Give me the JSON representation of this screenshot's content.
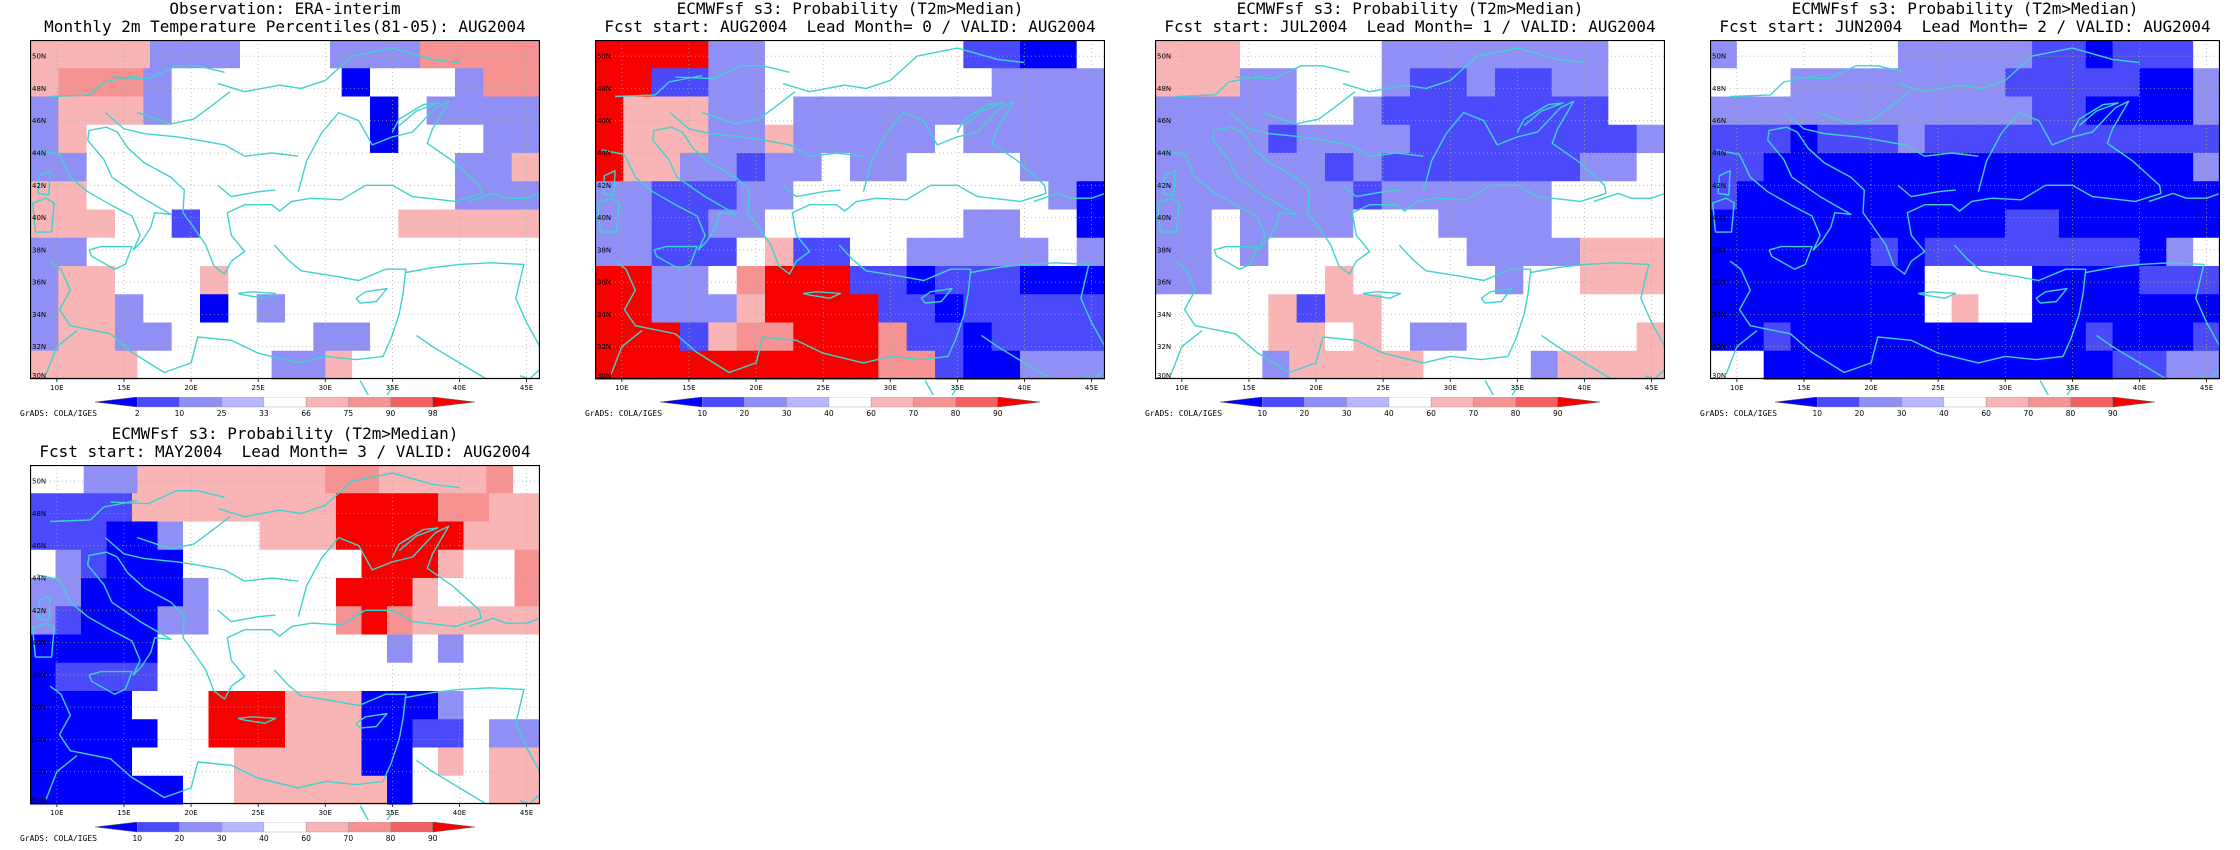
{
  "credit": "GrADS: COLA/IGES",
  "axes": {
    "lon_ticks": [
      "10E",
      "15E",
      "20E",
      "25E",
      "30E",
      "35E",
      "40E",
      "45E"
    ],
    "lat_ticks": [
      "30N",
      "32N",
      "34N",
      "36N",
      "38N",
      "40N",
      "42N",
      "44N",
      "46N",
      "48N",
      "50N"
    ],
    "lon_range": [
      8,
      46
    ],
    "lat_range": [
      30,
      51
    ]
  },
  "colors": {
    "dblue": "#0000ff",
    "mblue": "#4a4afb",
    "lblue": "#8f8ff6",
    "vlblue": "#b7b7ff",
    "white": "#ffffff",
    "vlred": "#f9b5b5",
    "lred": "#f69292",
    "mred": "#f26161",
    "dred": "#f70000",
    "coast": "#40d2cf",
    "grid": "#aaaaaa"
  },
  "panels": [
    {
      "name": "observation",
      "title1": "Observation: ERA-interim",
      "title2": "Monthly 2m Temperature Percentiles(81-05): AUG2004",
      "colorbar": {
        "labels": [
          "2",
          "10",
          "25",
          "33",
          "66",
          "75",
          "90",
          "98"
        ],
        "colors": [
          "dblue",
          "mblue",
          "lblue",
          "vlblue",
          "white",
          "vlred",
          "lred",
          "mred",
          "dred"
        ]
      },
      "grid_rows_north_to_south": [
        "llllvvvwwwvvvrrrr",
        "lrrrvwwwwwwbwwwvrr",
        "vlllvwwwwwwwbwvvvv",
        "vlwwwwwwwwwwbwwwvv",
        "vvwwwwwwwwwwwwwvvl",
        "llwwwwwwwwwwwwwvvv",
        "lllwwmwwwwwwwlllll",
        "vvwwwwwwwwwwwwwwww",
        "vllwwwlwwwwwwwwwww",
        "vllvwwbwvwwwwwwwww",
        "vllvvwwwwwvvwwwwww",
        "llllwwwwwvvlwwwwwww"
      ]
    },
    {
      "name": "lead0",
      "title1": "ECMWFsf s3: Probability (T2m>Median)",
      "title2": "Fcst start: AUG2004  Lead Month= 0 / VALID: AUG2004",
      "colorbar": {
        "labels": [
          "10",
          "20",
          "30",
          "40",
          "60",
          "70",
          "80",
          "90"
        ],
        "colors": [
          "dblue",
          "mblue",
          "lblue",
          "vlblue",
          "white",
          "vlred",
          "lred",
          "mred",
          "dred"
        ]
      },
      "grid_rows_north_to_south": [
        "ddddvvwwwwwwwmmbbw",
        "ddmmvvwwwwwwwwvvvv",
        "dlllvvwvvvvvvvvvvv",
        "dlllvvlvvvvvwvvvvv",
        "dllvvmvvwvvwwwwvvv",
        "vvmmmvvwwwwwwwwwvb",
        "vvmmvvwwwwwwwvvwwb",
        "vvmmmwlmmwwvvvvvwv",
        "ddvvwrdddmmbmmmbbb",
        "ddvvvlddddmmbmmmmm",
        "dddmlrrdddrmmbmmmm",
        "ddddddddddrrmbbvvv"
      ]
    },
    {
      "name": "lead1",
      "title1": "ECMWFsf s3: Probability (T2m>Median)",
      "title2": "Fcst start: JUL2004  Lead Month= 1 / VALID: AUG2004",
      "colorbar": {
        "labels": [
          "10",
          "20",
          "30",
          "40",
          "60",
          "70",
          "80",
          "90"
        ],
        "colors": [
          "dblue",
          "mblue",
          "lblue",
          "vlblue",
          "white",
          "vlred",
          "lred",
          "mred",
          "dred"
        ]
      },
      "grid_rows_north_to_south": [
        "lllwwwwwvvvvvvvvww",
        "lllvvwwwvmmvmmvvww",
        "vvvvvwwvmmmmmmmmww",
        "vvvvmvvvvmmmmmmmmv",
        "vvvvvvmvmmmmmmmvvw",
        "vvvvvvvmvvvvvvwwww",
        "vvwvvvvwwwvvvvwwww",
        "vvwvwwwwwwwvvvvlll",
        "vvwwwwlwwwwwvwwlll",
        "wwwwlmllwwwwwwwwww",
        "wwwwllwlwvvwwwwwwl",
        "wwwwvlllllwwwwvllll"
      ]
    },
    {
      "name": "lead2",
      "title1": "ECMWFsf s3: Probability (T2m>Median)",
      "title2": "Fcst start: JUN2004  Lead Month= 2 / VALID: AUG2004",
      "colorbar": {
        "labels": [
          "10",
          "20",
          "30",
          "40",
          "60",
          "70",
          "80",
          "90"
        ],
        "colors": [
          "dblue",
          "mblue",
          "lblue",
          "vlblue",
          "white",
          "vlred",
          "lred",
          "mred",
          "dred"
        ]
      },
      "grid_rows_north_to_south": [
        "vwwwwwwvvvvvmmbmmmw",
        "wwwvvvvvvvvmmmmmbbv",
        "vvvvvvvvvvvvmmbbbbv",
        "mmmbmmmvmmmmmmmmmmm",
        "mmbbbbbbbbbbbbbbbbv",
        "mbbbbbbbbbbbbbbbbbb",
        "bbbbbbbbbbbmmbbbbbb",
        "bbbbbbmbmmmmmmmmbvw",
        "bbbbbbbbwwwwbbbbmmm",
        "bbbbbbbbwlwwbbbbbbb",
        "bbmbbbbbbbbbbbmbbbm",
        "wwbbbbbbbbbbbbbmmvv"
      ]
    },
    {
      "name": "lead3",
      "title1": "ECMWFsf s3: Probability (T2m>Median)",
      "title2": "Fcst start: MAY2004  Lead Month= 3 / VALID: AUG2004",
      "colorbar": {
        "labels": [
          "10",
          "20",
          "30",
          "40",
          "60",
          "70",
          "80",
          "90"
        ],
        "colors": [
          "dblue",
          "mblue",
          "lblue",
          "vlblue",
          "white",
          "vlred",
          "lred",
          "mred",
          "dred"
        ]
      },
      "grid_rows_north_to_south": [
        "wwvvlllllllrrllllrw",
        "mmmmllllllllddddrrll",
        "mmmbbvwwwllldddddlll",
        "wvmbbbwwwwwwwdddlwwr",
        "vvbbbbvwwwwwdddlwwwr",
        "vmbbbvvwwwwwrdrlllll",
        "bbbbbwwwwwwwwwvwvwww",
        "bmmmmwwwwwwwwwwwwwww",
        "bbbbwwwdddlllbbbvwww",
        "bbbbbwwdddlllbbmmwvv",
        "bbbbwwwwlllllbbwlwll",
        "bbbbbbwwllllllbwwwll"
      ]
    }
  ]
}
